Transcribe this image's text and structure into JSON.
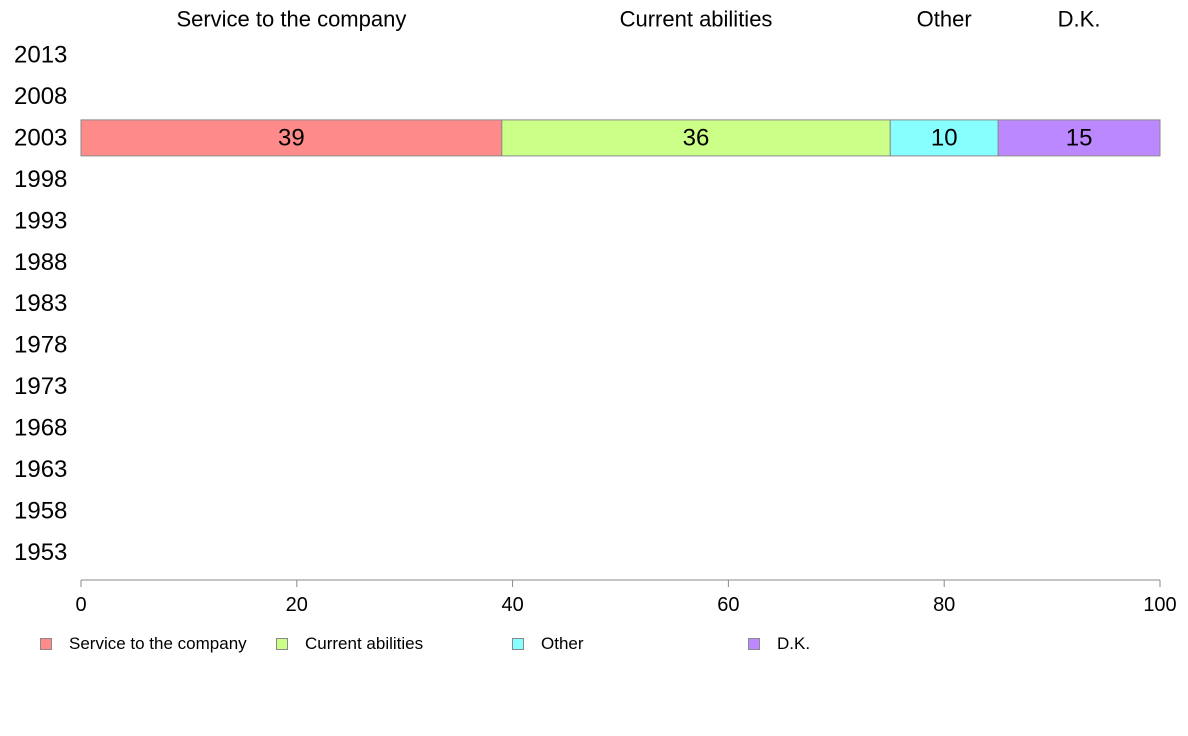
{
  "chart_data": {
    "type": "bar",
    "orientation": "horizontal",
    "stacked": true,
    "categories": [
      "2013",
      "2008",
      "2003",
      "1998",
      "1993",
      "1988",
      "1983",
      "1978",
      "1973",
      "1968",
      "1963",
      "1958",
      "1953"
    ],
    "series": [
      {
        "name": "Service to the company",
        "color": "#ff8a8a",
        "values": [
          null,
          null,
          39,
          null,
          null,
          null,
          null,
          null,
          null,
          null,
          null,
          null,
          null
        ]
      },
      {
        "name": "Current abilities",
        "color": "#ccff88",
        "values": [
          null,
          null,
          36,
          null,
          null,
          null,
          null,
          null,
          null,
          null,
          null,
          null,
          null
        ]
      },
      {
        "name": "Other",
        "color": "#88ffff",
        "values": [
          null,
          null,
          10,
          null,
          null,
          null,
          null,
          null,
          null,
          null,
          null,
          null,
          null
        ]
      },
      {
        "name": "D.K.",
        "color": "#bb88ff",
        "values": [
          null,
          null,
          15,
          null,
          null,
          null,
          null,
          null,
          null,
          null,
          null,
          null,
          null
        ]
      }
    ],
    "xlim": [
      0,
      100
    ],
    "xticks": [
      0,
      20,
      40,
      60,
      80,
      100
    ],
    "grid": false,
    "legend_position": "bottom-left"
  }
}
